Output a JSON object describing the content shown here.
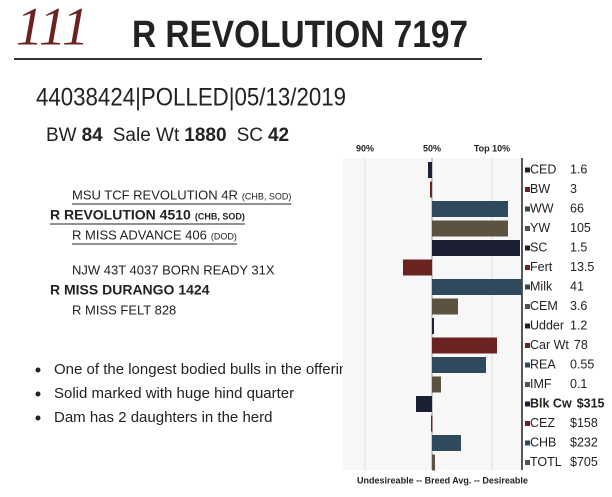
{
  "header": {
    "lot": "111",
    "name": "R REVOLUTION 7197"
  },
  "info": "44038424|POLLED|05/13/2019",
  "stats": [
    {
      "label": "BW",
      "value": 84
    },
    {
      "label": "Sale Wt",
      "value": 1880
    },
    {
      "label": "SC",
      "value": 42
    }
  ],
  "pedigree": [
    {
      "text": "MSU TCF REVOLUTION 4R",
      "tag": "(CHB, SOD)"
    },
    {
      "text": "R REVOLUTION 4510",
      "tag": "(CHB, SOD)"
    },
    {
      "text": "R MISS ADVANCE 406",
      "tag": "(DOD)"
    },
    {
      "text": "NJW 43T 4037 BORN READY 31X"
    },
    {
      "text": "R MISS DURANGO 1424"
    },
    {
      "text": "R MISS FELT 828"
    }
  ],
  "bullets": [
    "One of the longest bodied bulls in the offering",
    "Solid marked with huge hind quarter",
    "Dam has 2 daughters in the herd"
  ],
  "chart_data": {
    "type": "bar",
    "orientation": "horizontal",
    "categories": [
      "CED",
      "BW",
      "WW",
      "YW",
      "SC",
      "Fert",
      "Milk",
      "CEM",
      "Udder",
      "Car Wt",
      "REA",
      "IMF",
      "Blk Cw",
      "CEZ",
      "CHB",
      "TOTL"
    ],
    "values": [
      -4,
      -2,
      76,
      76,
      88,
      -29,
      90,
      26,
      2,
      65,
      54,
      9,
      -16,
      -1,
      29,
      3
    ],
    "epds": [
      1.6,
      3,
      66,
      105,
      1.5,
      13.5,
      41,
      3.6,
      1.2,
      78,
      0.55,
      0.1,
      {
        "value": 315,
        "label": "$315"
      },
      {
        "value": 158,
        "label": "$158"
      },
      {
        "value": 232,
        "label": "$232"
      },
      {
        "value": 705,
        "label": "$705"
      }
    ],
    "colors": [
      "#1c2035",
      "#6b2322",
      "#2f4a5d",
      "#5b5241",
      "#1c2035",
      "#6b2322",
      "#2f4a5d",
      "#5b5241",
      "#1c2035",
      "#6b2322",
      "#2f4a5d",
      "#5b5241",
      "#1c2035",
      "#6b2322",
      "#2f4a5d",
      "#5b5241"
    ],
    "xlim": [
      -89,
      90
    ],
    "xticks": [
      {
        "value": -67,
        "label": "90%"
      },
      {
        "value": 0,
        "label": "50%"
      },
      {
        "value": 60,
        "label": "Top 10%"
      }
    ],
    "footer": "Undesireable -- Breed Avg. -- Desireable"
  }
}
